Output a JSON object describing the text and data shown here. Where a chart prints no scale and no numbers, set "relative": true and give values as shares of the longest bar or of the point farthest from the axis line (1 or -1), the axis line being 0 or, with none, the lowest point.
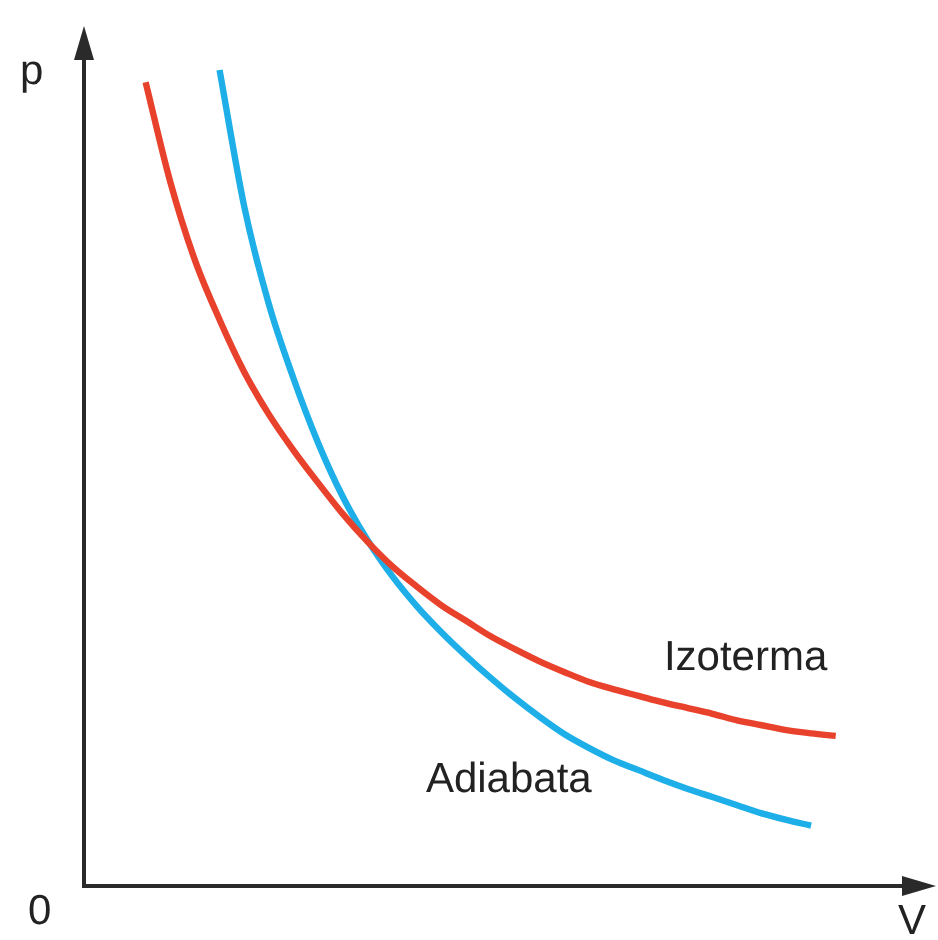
{
  "chart_data": {
    "type": "line",
    "relative": true,
    "xlabel": "V",
    "ylabel": "p",
    "annotations": [
      "0"
    ],
    "categories": [
      null,
      null,
      null,
      null,
      null,
      null,
      null,
      null,
      null,
      null,
      null,
      null,
      null,
      null,
      null,
      null,
      null,
      null,
      null,
      null,
      null,
      null,
      null,
      null,
      null,
      null,
      null,
      null,
      null,
      null,
      null,
      null,
      null,
      null
    ],
    "series": [
      {
        "name": "Izoterma",
        "color": "#e8412c",
        "values": [
          null,
          null,
          0.985,
          0.863,
          0.767,
          0.694,
          0.63,
          0.578,
          0.534,
          0.494,
          0.456,
          0.422,
          0.392,
          0.367,
          0.344,
          0.325,
          0.306,
          0.29,
          0.275,
          0.262,
          0.25,
          0.241,
          0.233,
          0.225,
          0.218,
          0.211,
          0.203,
          0.197,
          0.191,
          0.187,
          0.184,
          null,
          null,
          null
        ]
      },
      {
        "name": "Adiabata",
        "color": "#1eaee8",
        "values": [
          null,
          null,
          null,
          null,
          null,
          1,
          0.833,
          0.713,
          0.622,
          0.543,
          0.477,
          0.424,
          0.38,
          0.343,
          0.311,
          0.282,
          0.255,
          0.23,
          0.207,
          0.186,
          0.169,
          0.154,
          0.142,
          0.13,
          0.119,
          0.109,
          0.099,
          0.089,
          0.081,
          0.074,
          null,
          null,
          null,
          null
        ]
      }
    ]
  }
}
